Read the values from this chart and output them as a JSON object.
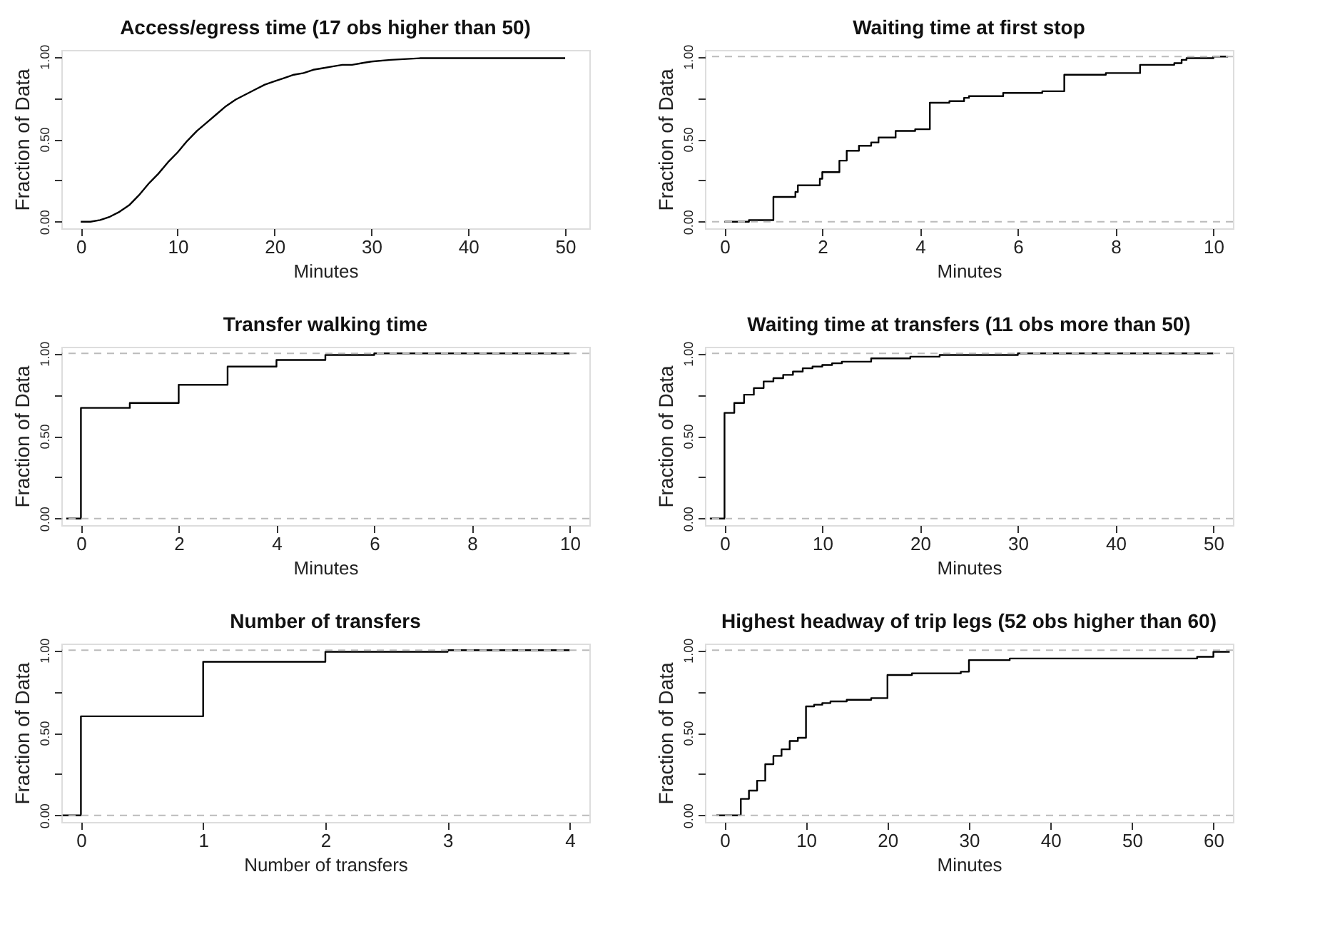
{
  "chart_data": [
    {
      "type": "line",
      "title": "Access/egress time (17 obs higher than 50)",
      "xlabel": "Minutes",
      "ylabel": "Fraction of Data",
      "xlim": [
        -2,
        52.5
      ],
      "xticks": [
        0,
        10,
        20,
        30,
        40,
        50
      ],
      "ylim": [
        -0.04,
        1.04
      ],
      "yticks": [
        {
          "value": 0,
          "label": "0.00"
        },
        {
          "value": 0.25,
          "label": null
        },
        {
          "value": 0.5,
          "label": "0.50"
        },
        {
          "value": 0.75,
          "label": null
        },
        {
          "value": 1,
          "label": "1.00"
        }
      ],
      "series": [
        {
          "color": "#000000",
          "x": [
            0,
            1,
            2,
            3,
            4,
            5,
            6,
            7,
            8,
            9,
            10,
            11,
            12,
            13,
            14,
            15,
            16,
            17,
            18,
            19,
            20,
            21,
            22,
            23,
            24,
            25,
            26,
            27,
            28,
            29,
            30,
            32,
            35,
            40,
            45,
            50
          ],
          "values": [
            0,
            0,
            0.01,
            0.03,
            0.06,
            0.1,
            0.16,
            0.23,
            0.29,
            0.36,
            0.42,
            0.49,
            0.55,
            0.6,
            0.65,
            0.7,
            0.74,
            0.77,
            0.8,
            0.83,
            0.85,
            0.87,
            0.89,
            0.9,
            0.92,
            0.93,
            0.94,
            0.95,
            0.95,
            0.96,
            0.97,
            0.98,
            0.99,
            0.99,
            0.99,
            0.99
          ]
        }
      ]
    },
    {
      "type": "step",
      "title": "Waiting time at first stop",
      "xlabel": "Minutes",
      "ylabel": "Fraction of Data",
      "xlim": [
        -0.4,
        10.4
      ],
      "xticks": [
        0,
        2,
        4,
        6,
        8,
        10
      ],
      "ylim": [
        -0.04,
        1.04
      ],
      "yticks": [
        {
          "value": 0,
          "label": "0.00"
        },
        {
          "value": 0.25,
          "label": null
        },
        {
          "value": 0.5,
          "label": "0.50"
        },
        {
          "value": 0.75,
          "label": null
        },
        {
          "value": 1,
          "label": "1.00"
        }
      ],
      "ref_lines": [
        {
          "axis": "y",
          "value": 0,
          "color": "#bbbbbb",
          "line_style": "dashed"
        },
        {
          "axis": "y",
          "value": 1,
          "color": "#bbbbbb",
          "line_style": "dashed"
        }
      ],
      "series": [
        {
          "color": "#000000",
          "x": [
            0,
            0.5,
            1,
            1.45,
            1.5,
            1.95,
            2,
            2.35,
            2.5,
            2.75,
            3,
            3.15,
            3.5,
            3.9,
            4.2,
            4.6,
            4.9,
            5,
            5.7,
            6.5,
            6.95,
            7.8,
            8.5,
            9.2,
            9.35,
            9.45,
            10,
            10.3
          ],
          "values": [
            0,
            0.01,
            0.15,
            0.18,
            0.22,
            0.26,
            0.3,
            0.37,
            0.43,
            0.46,
            0.48,
            0.51,
            0.55,
            0.56,
            0.72,
            0.73,
            0.75,
            0.76,
            0.78,
            0.79,
            0.89,
            0.9,
            0.95,
            0.96,
            0.98,
            0.99,
            1.0,
            1.0
          ]
        }
      ]
    },
    {
      "type": "step",
      "title": "Transfer walking time",
      "xlabel": "Minutes",
      "ylabel": "Fraction of Data",
      "xlim": [
        -0.4,
        10.4
      ],
      "xticks": [
        0,
        2,
        4,
        6,
        8,
        10
      ],
      "ylim": [
        -0.04,
        1.04
      ],
      "yticks": [
        {
          "value": 0,
          "label": "0.00"
        },
        {
          "value": 0.25,
          "label": null
        },
        {
          "value": 0.5,
          "label": "0.50"
        },
        {
          "value": 0.75,
          "label": null
        },
        {
          "value": 1,
          "label": "1.00"
        }
      ],
      "ref_lines": [
        {
          "axis": "y",
          "value": 0,
          "color": "#bbbbbb",
          "line_style": "dashed"
        },
        {
          "axis": "y",
          "value": 1,
          "color": "#bbbbbb",
          "line_style": "dashed"
        }
      ],
      "series": [
        {
          "color": "#000000",
          "x": [
            -0.3,
            0,
            1,
            2,
            3,
            4,
            5,
            6,
            10
          ],
          "values": [
            0,
            0.67,
            0.7,
            0.81,
            0.92,
            0.96,
            0.99,
            1.0,
            1.0
          ]
        }
      ]
    },
    {
      "type": "step",
      "title": "Waiting time at transfers (11 obs more than 50)",
      "xlabel": "Minutes",
      "ylabel": "Fraction of Data",
      "xlim": [
        -2,
        52
      ],
      "xticks": [
        0,
        10,
        20,
        30,
        40,
        50
      ],
      "ylim": [
        -0.04,
        1.04
      ],
      "yticks": [
        {
          "value": 0,
          "label": "0.00"
        },
        {
          "value": 0.25,
          "label": null
        },
        {
          "value": 0.5,
          "label": "0.50"
        },
        {
          "value": 0.75,
          "label": null
        },
        {
          "value": 1,
          "label": "1.00"
        }
      ],
      "ref_lines": [
        {
          "axis": "y",
          "value": 0,
          "color": "#bbbbbb",
          "line_style": "dashed"
        },
        {
          "axis": "y",
          "value": 1,
          "color": "#bbbbbb",
          "line_style": "dashed"
        }
      ],
      "series": [
        {
          "color": "#000000",
          "x": [
            -1.5,
            0,
            1,
            2,
            3,
            4,
            5,
            6,
            7,
            8,
            9,
            10,
            11,
            12,
            13,
            15,
            19,
            22,
            30,
            50
          ],
          "values": [
            0,
            0.64,
            0.7,
            0.75,
            0.79,
            0.83,
            0.85,
            0.87,
            0.89,
            0.91,
            0.92,
            0.93,
            0.94,
            0.95,
            0.95,
            0.97,
            0.98,
            0.99,
            1.0,
            1.0
          ]
        }
      ]
    },
    {
      "type": "step",
      "title": "Number of transfers",
      "xlabel": "Number of transfers",
      "ylabel": "Fraction of Data",
      "xlim": [
        -0.16,
        4.16
      ],
      "xticks": [
        0,
        1,
        2,
        3,
        4
      ],
      "ylim": [
        -0.04,
        1.04
      ],
      "yticks": [
        {
          "value": 0,
          "label": "0.00"
        },
        {
          "value": 0.25,
          "label": null
        },
        {
          "value": 0.5,
          "label": "0.50"
        },
        {
          "value": 0.75,
          "label": null
        },
        {
          "value": 1,
          "label": "1.00"
        }
      ],
      "ref_lines": [
        {
          "axis": "y",
          "value": 0,
          "color": "#bbbbbb",
          "line_style": "dashed"
        },
        {
          "axis": "y",
          "value": 1,
          "color": "#bbbbbb",
          "line_style": "dashed"
        }
      ],
      "series": [
        {
          "color": "#000000",
          "x": [
            -0.15,
            0,
            1,
            2,
            3,
            4
          ],
          "values": [
            0,
            0.6,
            0.93,
            0.99,
            1.0,
            1.0
          ]
        }
      ]
    },
    {
      "type": "step",
      "title": "Highest headway of trip legs (52 obs higher than 60)",
      "xlabel": "Minutes",
      "ylabel": "Fraction of Data",
      "xlim": [
        -2.4,
        62.4
      ],
      "xticks": [
        0,
        10,
        20,
        30,
        40,
        50,
        60
      ],
      "ylim": [
        -0.04,
        1.04
      ],
      "yticks": [
        {
          "value": 0,
          "label": "0.00"
        },
        {
          "value": 0.25,
          "label": null
        },
        {
          "value": 0.5,
          "label": "0.50"
        },
        {
          "value": 0.75,
          "label": null
        },
        {
          "value": 1,
          "label": "1.00"
        }
      ],
      "ref_lines": [
        {
          "axis": "y",
          "value": 0,
          "color": "#bbbbbb",
          "line_style": "dashed"
        },
        {
          "axis": "y",
          "value": 1,
          "color": "#bbbbbb",
          "line_style": "dashed"
        }
      ],
      "series": [
        {
          "color": "#000000",
          "x": [
            -1,
            2,
            3,
            4,
            5,
            6,
            7,
            8,
            9,
            10,
            11,
            12,
            13,
            15,
            18,
            20,
            23,
            29,
            30,
            35,
            58,
            60,
            62
          ],
          "values": [
            0,
            0.1,
            0.15,
            0.21,
            0.31,
            0.36,
            0.4,
            0.45,
            0.47,
            0.66,
            0.67,
            0.68,
            0.69,
            0.7,
            0.71,
            0.85,
            0.86,
            0.87,
            0.94,
            0.95,
            0.96,
            0.99,
            0.99
          ]
        }
      ]
    }
  ]
}
